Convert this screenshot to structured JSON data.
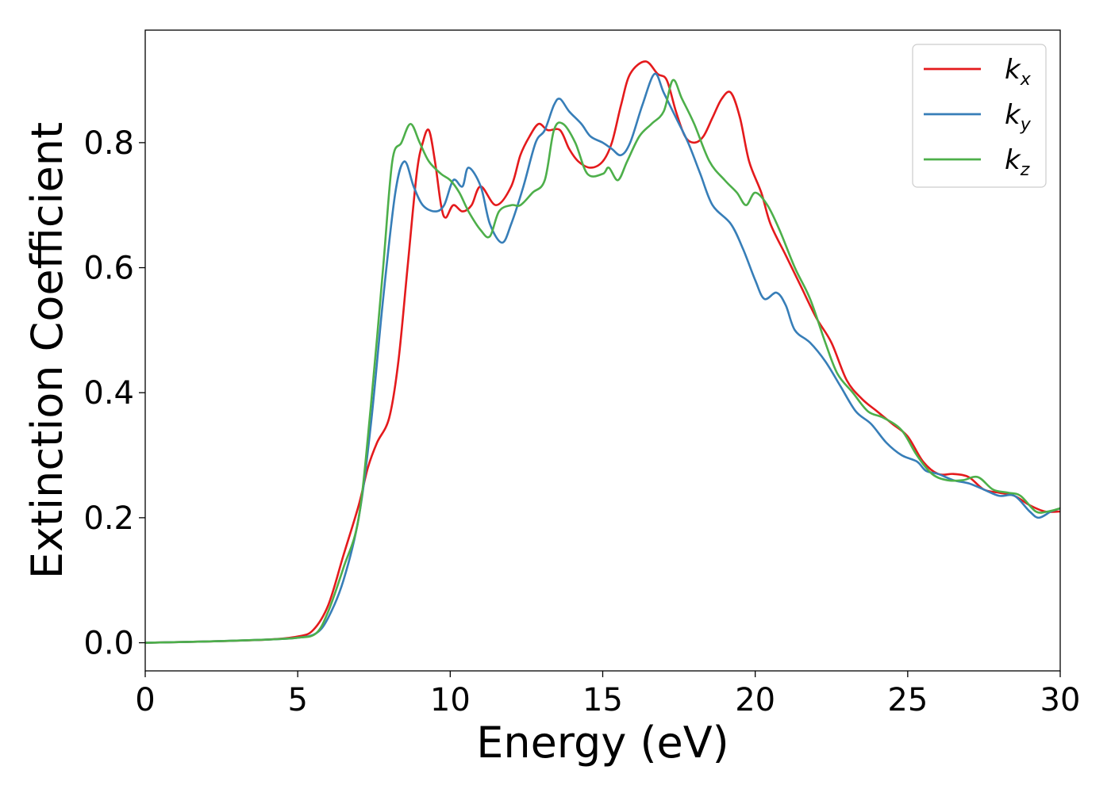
{
  "chart_data": {
    "type": "line",
    "xlabel": "Energy (eV)",
    "ylabel": "Extinction Coefficient",
    "xlim": [
      0,
      30
    ],
    "ylim": [
      -0.045,
      0.98
    ],
    "xticks": [
      0,
      5,
      10,
      15,
      20,
      25,
      30
    ],
    "yticks": [
      0.0,
      0.2,
      0.4,
      0.6,
      0.8
    ],
    "xtick_labels": [
      "0",
      "5",
      "10",
      "15",
      "20",
      "25",
      "30"
    ],
    "ytick_labels": [
      "0.0",
      "0.2",
      "0.4",
      "0.6",
      "0.8"
    ],
    "grid": false,
    "legend_position": "top-right",
    "series": [
      {
        "name": "k_x",
        "label_main": "k",
        "label_sub": "x",
        "color": "#e41a1c",
        "points": [
          [
            0,
            0.0
          ],
          [
            2,
            0.002
          ],
          [
            4,
            0.005
          ],
          [
            5,
            0.01
          ],
          [
            5.5,
            0.02
          ],
          [
            6,
            0.06
          ],
          [
            6.5,
            0.14
          ],
          [
            7,
            0.22
          ],
          [
            7.3,
            0.28
          ],
          [
            7.6,
            0.32
          ],
          [
            8,
            0.36
          ],
          [
            8.3,
            0.45
          ],
          [
            8.6,
            0.6
          ],
          [
            8.9,
            0.75
          ],
          [
            9.1,
            0.8
          ],
          [
            9.3,
            0.82
          ],
          [
            9.5,
            0.77
          ],
          [
            9.7,
            0.7
          ],
          [
            9.85,
            0.68
          ],
          [
            10.1,
            0.7
          ],
          [
            10.4,
            0.69
          ],
          [
            10.7,
            0.7
          ],
          [
            11,
            0.73
          ],
          [
            11.5,
            0.7
          ],
          [
            12,
            0.73
          ],
          [
            12.3,
            0.78
          ],
          [
            12.6,
            0.81
          ],
          [
            12.9,
            0.83
          ],
          [
            13.2,
            0.82
          ],
          [
            13.6,
            0.82
          ],
          [
            13.9,
            0.79
          ],
          [
            14.2,
            0.77
          ],
          [
            14.6,
            0.76
          ],
          [
            15,
            0.77
          ],
          [
            15.3,
            0.8
          ],
          [
            15.6,
            0.86
          ],
          [
            15.9,
            0.91
          ],
          [
            16.4,
            0.93
          ],
          [
            16.8,
            0.91
          ],
          [
            17.1,
            0.9
          ],
          [
            17.4,
            0.85
          ],
          [
            17.7,
            0.81
          ],
          [
            18,
            0.8
          ],
          [
            18.3,
            0.81
          ],
          [
            18.6,
            0.84
          ],
          [
            18.9,
            0.87
          ],
          [
            19.2,
            0.88
          ],
          [
            19.5,
            0.84
          ],
          [
            19.8,
            0.77
          ],
          [
            20.2,
            0.72
          ],
          [
            20.5,
            0.67
          ],
          [
            21,
            0.62
          ],
          [
            21.5,
            0.57
          ],
          [
            22,
            0.52
          ],
          [
            22.5,
            0.48
          ],
          [
            23,
            0.42
          ],
          [
            23.5,
            0.39
          ],
          [
            24,
            0.37
          ],
          [
            24.5,
            0.35
          ],
          [
            25,
            0.33
          ],
          [
            25.5,
            0.29
          ],
          [
            26,
            0.27
          ],
          [
            26.5,
            0.27
          ],
          [
            27,
            0.265
          ],
          [
            27.5,
            0.245
          ],
          [
            28,
            0.24
          ],
          [
            28.5,
            0.235
          ],
          [
            29,
            0.22
          ],
          [
            29.5,
            0.21
          ],
          [
            30,
            0.21
          ]
        ]
      },
      {
        "name": "k_y",
        "label_main": "k",
        "label_sub": "y",
        "color": "#377eb8",
        "points": [
          [
            0,
            0.0
          ],
          [
            2,
            0.002
          ],
          [
            4,
            0.005
          ],
          [
            5,
            0.008
          ],
          [
            5.6,
            0.015
          ],
          [
            6,
            0.04
          ],
          [
            6.5,
            0.1
          ],
          [
            7,
            0.2
          ],
          [
            7.4,
            0.35
          ],
          [
            7.8,
            0.55
          ],
          [
            8.2,
            0.72
          ],
          [
            8.5,
            0.77
          ],
          [
            8.8,
            0.73
          ],
          [
            9.1,
            0.7
          ],
          [
            9.5,
            0.69
          ],
          [
            9.8,
            0.7
          ],
          [
            10.1,
            0.74
          ],
          [
            10.4,
            0.73
          ],
          [
            10.6,
            0.76
          ],
          [
            11,
            0.73
          ],
          [
            11.3,
            0.67
          ],
          [
            11.7,
            0.64
          ],
          [
            12,
            0.67
          ],
          [
            12.4,
            0.73
          ],
          [
            12.8,
            0.8
          ],
          [
            13.1,
            0.82
          ],
          [
            13.4,
            0.86
          ],
          [
            13.6,
            0.87
          ],
          [
            13.9,
            0.85
          ],
          [
            14.3,
            0.83
          ],
          [
            14.6,
            0.81
          ],
          [
            15,
            0.8
          ],
          [
            15.3,
            0.79
          ],
          [
            15.6,
            0.78
          ],
          [
            15.9,
            0.8
          ],
          [
            16.3,
            0.86
          ],
          [
            16.7,
            0.91
          ],
          [
            17,
            0.88
          ],
          [
            17.4,
            0.84
          ],
          [
            17.8,
            0.8
          ],
          [
            18.2,
            0.75
          ],
          [
            18.6,
            0.7
          ],
          [
            19.2,
            0.67
          ],
          [
            19.6,
            0.63
          ],
          [
            20,
            0.58
          ],
          [
            20.3,
            0.55
          ],
          [
            20.7,
            0.56
          ],
          [
            21,
            0.54
          ],
          [
            21.3,
            0.5
          ],
          [
            21.8,
            0.48
          ],
          [
            22.3,
            0.45
          ],
          [
            22.8,
            0.41
          ],
          [
            23.3,
            0.37
          ],
          [
            23.8,
            0.35
          ],
          [
            24.3,
            0.32
          ],
          [
            24.8,
            0.3
          ],
          [
            25.3,
            0.29
          ],
          [
            25.6,
            0.275
          ],
          [
            26,
            0.27
          ],
          [
            26.5,
            0.26
          ],
          [
            27,
            0.255
          ],
          [
            27.5,
            0.245
          ],
          [
            28,
            0.235
          ],
          [
            28.5,
            0.235
          ],
          [
            29,
            0.21
          ],
          [
            29.3,
            0.2
          ],
          [
            29.7,
            0.21
          ],
          [
            30,
            0.215
          ]
        ]
      },
      {
        "name": "k_z",
        "label_main": "k",
        "label_sub": "z",
        "color": "#4daf4a",
        "points": [
          [
            0,
            0.0
          ],
          [
            2,
            0.002
          ],
          [
            4,
            0.005
          ],
          [
            5,
            0.008
          ],
          [
            5.6,
            0.015
          ],
          [
            6,
            0.05
          ],
          [
            6.5,
            0.12
          ],
          [
            7,
            0.2
          ],
          [
            7.4,
            0.38
          ],
          [
            7.8,
            0.6
          ],
          [
            8.1,
            0.77
          ],
          [
            8.4,
            0.8
          ],
          [
            8.7,
            0.83
          ],
          [
            9,
            0.8
          ],
          [
            9.3,
            0.77
          ],
          [
            9.7,
            0.75
          ],
          [
            10,
            0.74
          ],
          [
            10.3,
            0.72
          ],
          [
            10.6,
            0.69
          ],
          [
            11,
            0.66
          ],
          [
            11.3,
            0.65
          ],
          [
            11.6,
            0.69
          ],
          [
            12,
            0.7
          ],
          [
            12.3,
            0.7
          ],
          [
            12.7,
            0.72
          ],
          [
            13.1,
            0.74
          ],
          [
            13.4,
            0.82
          ],
          [
            13.7,
            0.83
          ],
          [
            14.1,
            0.8
          ],
          [
            14.5,
            0.75
          ],
          [
            15,
            0.75
          ],
          [
            15.2,
            0.76
          ],
          [
            15.5,
            0.74
          ],
          [
            15.8,
            0.77
          ],
          [
            16.2,
            0.81
          ],
          [
            16.6,
            0.83
          ],
          [
            17,
            0.85
          ],
          [
            17.3,
            0.9
          ],
          [
            17.6,
            0.87
          ],
          [
            18,
            0.83
          ],
          [
            18.5,
            0.77
          ],
          [
            19,
            0.74
          ],
          [
            19.4,
            0.72
          ],
          [
            19.7,
            0.7
          ],
          [
            20,
            0.72
          ],
          [
            20.4,
            0.7
          ],
          [
            20.8,
            0.66
          ],
          [
            21.3,
            0.6
          ],
          [
            21.8,
            0.55
          ],
          [
            22.3,
            0.48
          ],
          [
            22.7,
            0.43
          ],
          [
            23.2,
            0.4
          ],
          [
            23.7,
            0.37
          ],
          [
            24.2,
            0.36
          ],
          [
            24.8,
            0.34
          ],
          [
            25.3,
            0.3
          ],
          [
            25.8,
            0.27
          ],
          [
            26.3,
            0.26
          ],
          [
            26.8,
            0.26
          ],
          [
            27.3,
            0.265
          ],
          [
            27.8,
            0.245
          ],
          [
            28.3,
            0.24
          ],
          [
            28.7,
            0.235
          ],
          [
            29.2,
            0.21
          ],
          [
            29.6,
            0.21
          ],
          [
            30,
            0.215
          ]
        ]
      }
    ]
  }
}
